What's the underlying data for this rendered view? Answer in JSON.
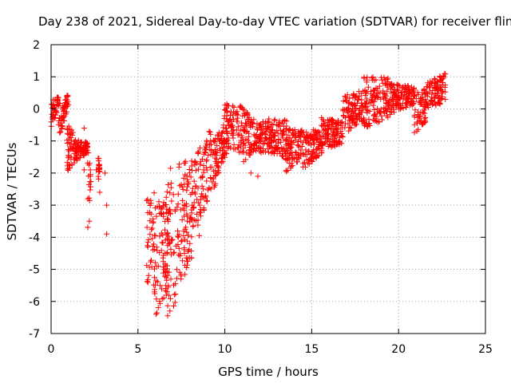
{
  "chart_data": {
    "type": "scatter",
    "title": "Day 238 of 2021, Sidereal Day-to-day VTEC variation (SDTVAR) for receiver flin",
    "xlabel": "GPS time / hours",
    "ylabel": "SDTVAR / TECUs",
    "xlim": [
      0,
      25
    ],
    "ylim": [
      -7,
      2
    ],
    "xticks": [
      0,
      5,
      10,
      15,
      20,
      25
    ],
    "yticks": [
      2,
      1,
      0,
      -1,
      -2,
      -3,
      -4,
      -5,
      -6,
      -7
    ],
    "grid": true,
    "marker": "+",
    "color": "#ff0000",
    "segments": [
      {
        "x0": 0.0,
        "x1": 0.5,
        "ylo": [
          -0.6,
          0.1
        ],
        "yhi": [
          0.4,
          0.4
        ]
      },
      {
        "x0": 0.4,
        "x1": 1.0,
        "ylo": [
          -1.0,
          0.0
        ],
        "yhi": [
          -0.3,
          0.6
        ]
      },
      {
        "x0": 0.9,
        "x1": 1.6,
        "ylo": [
          -2.0,
          -1.6
        ],
        "yhi": [
          -0.4,
          -1.0
        ]
      },
      {
        "x0": 1.4,
        "x1": 2.1,
        "ylo": [
          -1.6,
          -1.4
        ],
        "yhi": [
          -1.0,
          -1.0
        ]
      },
      {
        "x0": 2.1,
        "x1": 2.3,
        "ylo": [
          -3.8,
          -2.3
        ],
        "yhi": [
          -1.0,
          -2.1
        ]
      },
      {
        "x0": 2.7,
        "x1": 2.8,
        "ylo": [
          -2.3,
          -2.0
        ],
        "yhi": [
          -1.1,
          -1.8
        ]
      },
      {
        "x0": 5.5,
        "x1": 6.0,
        "ylo": [
          -6.0,
          -6.0
        ],
        "yhi": [
          -2.6,
          -2.6
        ]
      },
      {
        "x0": 6.0,
        "x1": 6.8,
        "ylo": [
          -6.5,
          -5.5
        ],
        "yhi": [
          -2.9,
          -2.8
        ]
      },
      {
        "x0": 6.6,
        "x1": 7.2,
        "ylo": [
          -6.6,
          -6.0
        ],
        "yhi": [
          -2.0,
          -1.6
        ]
      },
      {
        "x0": 7.2,
        "x1": 7.9,
        "ylo": [
          -5.6,
          -5.0
        ],
        "yhi": [
          -1.8,
          -1.4
        ]
      },
      {
        "x0": 7.8,
        "x1": 8.6,
        "ylo": [
          -5.0,
          -4.0
        ],
        "yhi": [
          -1.8,
          -1.0
        ]
      },
      {
        "x0": 8.6,
        "x1": 9.2,
        "ylo": [
          -3.5,
          -2.5
        ],
        "yhi": [
          -1.6,
          -0.5
        ]
      },
      {
        "x0": 9.2,
        "x1": 10.0,
        "ylo": [
          -2.8,
          -1.5
        ],
        "yhi": [
          -1.0,
          -0.5
        ]
      },
      {
        "x0": 9.9,
        "x1": 10.8,
        "ylo": [
          -1.6,
          -1.2
        ],
        "yhi": [
          0.3,
          0.1
        ]
      },
      {
        "x0": 10.8,
        "x1": 12.0,
        "ylo": [
          -1.8,
          -1.2
        ],
        "yhi": [
          0.2,
          -0.5
        ]
      },
      {
        "x0": 12.0,
        "x1": 13.6,
        "ylo": [
          -1.4,
          -1.5
        ],
        "yhi": [
          -0.3,
          -0.3
        ]
      },
      {
        "x0": 13.5,
        "x1": 14.5,
        "ylo": [
          -2.0,
          -1.5
        ],
        "yhi": [
          -0.6,
          -0.6
        ]
      },
      {
        "x0": 14.5,
        "x1": 15.6,
        "ylo": [
          -1.9,
          -1.4
        ],
        "yhi": [
          -0.7,
          -0.6
        ]
      },
      {
        "x0": 15.5,
        "x1": 16.8,
        "ylo": [
          -1.3,
          -1.1
        ],
        "yhi": [
          -0.2,
          -0.4
        ]
      },
      {
        "x0": 16.8,
        "x1": 18.0,
        "ylo": [
          -0.8,
          -0.4
        ],
        "yhi": [
          0.4,
          0.6
        ]
      },
      {
        "x0": 18.0,
        "x1": 19.4,
        "ylo": [
          -0.6,
          -0.3
        ],
        "yhi": [
          1.0,
          1.0
        ]
      },
      {
        "x0": 19.4,
        "x1": 20.9,
        "ylo": [
          -0.2,
          0.1
        ],
        "yhi": [
          0.8,
          0.7
        ]
      },
      {
        "x0": 20.9,
        "x1": 21.6,
        "ylo": [
          -0.8,
          -0.4
        ],
        "yhi": [
          0.6,
          0.7
        ]
      },
      {
        "x0": 21.6,
        "x1": 22.7,
        "ylo": [
          0.0,
          0.2
        ],
        "yhi": [
          0.8,
          1.2
        ]
      }
    ],
    "isolated_points": [
      {
        "x": 1.9,
        "y": -0.6
      },
      {
        "x": 1.9,
        "y": -1.9
      },
      {
        "x": 2.2,
        "y": -3.5
      },
      {
        "x": 2.6,
        "y": -1.9
      },
      {
        "x": 2.8,
        "y": -2.6
      },
      {
        "x": 3.1,
        "y": -2.0
      },
      {
        "x": 3.2,
        "y": -3.0
      },
      {
        "x": 3.2,
        "y": -3.9
      },
      {
        "x": 11.5,
        "y": -2.0
      },
      {
        "x": 11.9,
        "y": -2.1
      },
      {
        "x": 12.0,
        "y": -1.0
      },
      {
        "x": 12.2,
        "y": -1.3
      },
      {
        "x": 12.4,
        "y": -0.7
      }
    ]
  }
}
